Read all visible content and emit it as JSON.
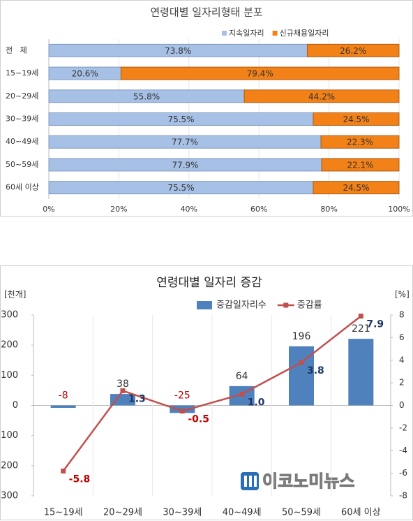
{
  "chart_data": [
    {
      "type": "bar",
      "orientation": "horizontal",
      "stacked": true,
      "title": "연령대별 일자리형태 분포",
      "categories": [
        "전   체",
        "15~19세",
        "20~29세",
        "30~39세",
        "40~49세",
        "50~59세",
        "60세 이상"
      ],
      "series": [
        {
          "name": "지속일자리",
          "color": "#a7c1e6",
          "label_color": "#333333",
          "values": [
            73.8,
            20.6,
            55.8,
            75.5,
            77.7,
            77.9,
            75.5
          ],
          "value_labels": [
            "73.8%",
            "20.6%",
            "55.8%",
            "75.5%",
            "77.7%",
            "77.9%",
            "75.5%"
          ]
        },
        {
          "name": "신규채용일자리",
          "color": "#f28118",
          "label_color": "#ffffff",
          "values": [
            26.2,
            79.4,
            44.2,
            24.5,
            22.3,
            22.1,
            24.5
          ],
          "value_labels": [
            "26.2%",
            "79.4%",
            "44.2%",
            "24.5%",
            "22.3%",
            "22.1%",
            "24.5%"
          ]
        }
      ],
      "xlim": [
        0,
        100
      ],
      "xticks": [
        {
          "value": 0,
          "label": "0%"
        },
        {
          "value": 20,
          "label": "20%"
        },
        {
          "value": 40,
          "label": "40%"
        },
        {
          "value": 60,
          "label": "60%"
        },
        {
          "value": 80,
          "label": "80%"
        },
        {
          "value": 100,
          "label": "100%"
        }
      ],
      "grid": true,
      "legend": "top-right"
    },
    {
      "type": "bar",
      "orientation": "vertical",
      "title": "연령대별 일자리 증감",
      "y_label": "[천개]",
      "y2_label": "[%]",
      "categories": [
        "15~19세",
        "20~29세",
        "30~39세",
        "40~49세",
        "50~59세",
        "60세 이상"
      ],
      "series": [
        {
          "name": "증감일자리수",
          "color": "#4f81bd",
          "values": [
            -8,
            38,
            -25,
            64,
            196,
            221
          ]
        },
        {
          "name": "증감률",
          "type": "line",
          "axis": "y2",
          "color": "#c0504d",
          "values": [
            -5.8,
            1.3,
            -0.5,
            1.0,
            3.8,
            7.9
          ],
          "value_labels": [
            "-5.8",
            "1.3",
            "-0.5",
            "1.0",
            "3.8",
            "7.9"
          ]
        }
      ],
      "ylim": [
        -300,
        300
      ],
      "yticks": [
        {
          "value": -300,
          "label": "300"
        },
        {
          "value": -200,
          "label": "200"
        },
        {
          "value": -100,
          "label": "100"
        },
        0,
        100,
        200,
        300
      ],
      "y2lim": [
        -8,
        8
      ],
      "y2ticks": [
        -8,
        -6,
        -4,
        -2,
        0,
        2,
        4,
        6,
        8
      ],
      "watermark": "이코노미뉴스",
      "legend": "top"
    }
  ]
}
